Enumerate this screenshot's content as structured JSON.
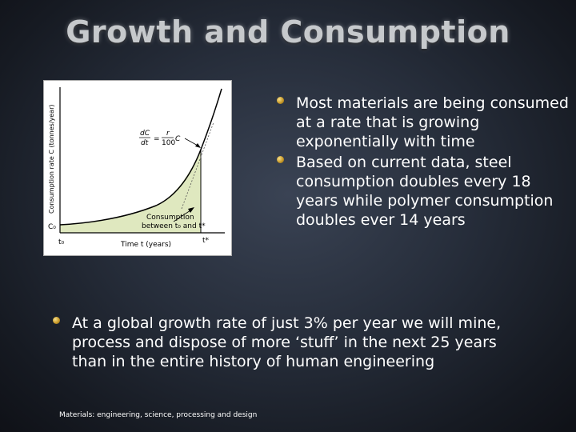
{
  "slide": {
    "title": "Growth and Consumption",
    "bullets_right": [
      "Most materials are being consumed at a rate that is growing exponentially with time",
      "Based on current data, steel consumption doubles every 18 years while polymer consumption doubles ever 14 years"
    ],
    "bullet_bottom": "At a global growth rate of just 3% per year we will mine, process and dispose of more ‘stuff’ in the next 25 years than in the entire history of human engineering",
    "footer": "Materials: engineering, science, processing and design",
    "bullet_color": "#d4a733"
  },
  "figure": {
    "ylabel": "Consumption rate C (tonnes/year)",
    "xlabel": "Time t (years)",
    "equation_lhs_num": "dC",
    "equation_lhs_den": "dt",
    "equation_rhs_num": "r",
    "equation_rhs_den": "100",
    "equation_rhs_var": "C",
    "equation_eq": "=",
    "area_label_line1": "Consumption",
    "area_label_line2": "between t₀ and t*",
    "c0_label": "C₀",
    "t0_label": "t₀",
    "tstar_label": "t*"
  }
}
